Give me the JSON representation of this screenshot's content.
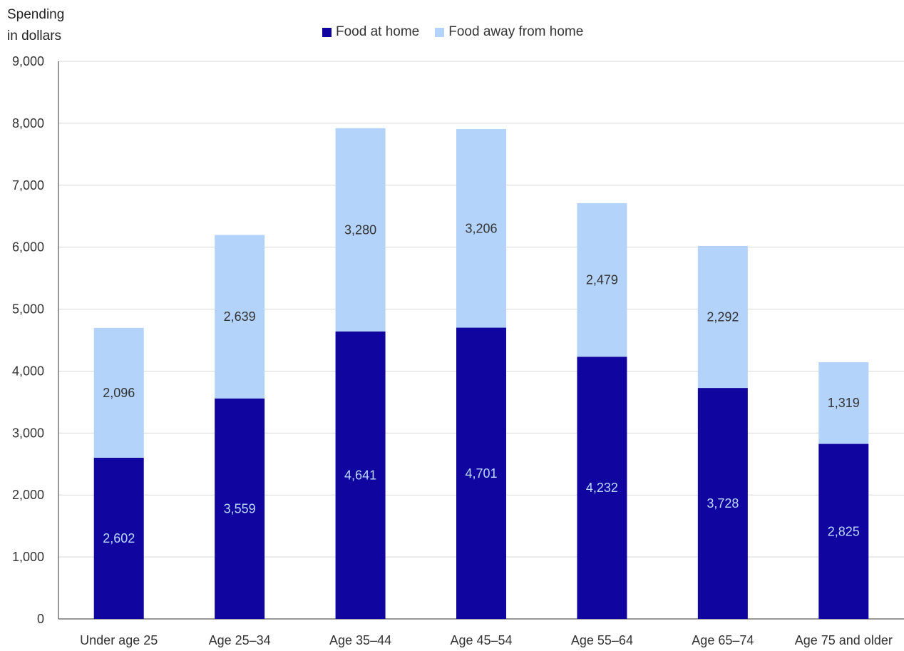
{
  "chart_data": {
    "type": "bar",
    "stacked": true,
    "ylabel_lines": [
      "Spending",
      "in dollars"
    ],
    "categories": [
      "Under age 25",
      "Age 25–34",
      "Age 35–44",
      "Age 45–54",
      "Age 55–64",
      "Age 65–74",
      "Age 75 and older"
    ],
    "series": [
      {
        "name": "Food at home",
        "color": "#10069f",
        "label_color": "#bcd7ff",
        "values": [
          2602,
          3559,
          4641,
          4701,
          4232,
          3728,
          2825
        ]
      },
      {
        "name": "Food away from home",
        "color": "#b3d3fb",
        "label_color": "#333333",
        "values": [
          2096,
          2639,
          3280,
          3206,
          2479,
          2292,
          1319
        ]
      }
    ],
    "ylim": [
      0,
      9000
    ],
    "yticks": [
      0,
      1000,
      2000,
      3000,
      4000,
      5000,
      6000,
      7000,
      8000,
      9000
    ],
    "grid": true,
    "legend_position": "top-center"
  }
}
